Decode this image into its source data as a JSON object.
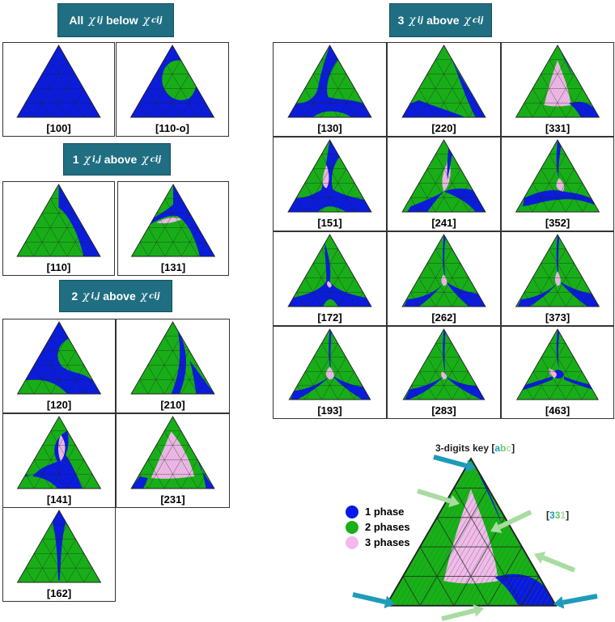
{
  "colors": {
    "one_phase": "#0b17e6",
    "two_phase": "#19b019",
    "three_phase": "#f5b8ee",
    "header_bg": "#1f6e82",
    "arrow_blue": "#1e9bb9",
    "arrow_green": "#a8dca0"
  },
  "headers": {
    "g0": {
      "pre": "All",
      "chi": "χ",
      "sub1": "ij",
      "mid": "below",
      "chi2": "χ",
      "sup2": "c",
      "sub2": "ij"
    },
    "g1": {
      "pre": "1",
      "chi": "χ",
      "sub1": "i,j",
      "mid": "above",
      "chi2": "χ",
      "sup2": "c",
      "sub2": "ij"
    },
    "g2": {
      "pre": "2",
      "chi": "χ",
      "sub1": "i,j",
      "mid": "above",
      "chi2": "χ",
      "sup2": "c",
      "sub2": "ij"
    },
    "g3": {
      "pre": "3",
      "chi": "χ",
      "sub1": "ij",
      "mid": "above",
      "chi2": "χ",
      "sup2": "c",
      "sub2": "ij"
    }
  },
  "cells": {
    "c100": "[100]",
    "c110o": "[110-o]",
    "c110": "[110]",
    "c131": "[131]",
    "c120": "[120]",
    "c210": "[210]",
    "c141": "[141]",
    "c231": "[231]",
    "c162": "[162]",
    "c130": "[130]",
    "c220": "[220]",
    "c331": "[331]",
    "c151": "[151]",
    "c241": "[241]",
    "c352": "[352]",
    "c172": "[172]",
    "c262": "[262]",
    "c373": "[373]",
    "c193": "[193]",
    "c283": "[283]",
    "c463": "[463]"
  },
  "legend": {
    "one": "1 phase",
    "two": "2 phases",
    "three": "3 phases"
  },
  "key": {
    "title": "3-digits key [",
    "a": "a",
    "b": "b",
    "c": "c",
    "close": "]",
    "example_open": "[",
    "d1": "3",
    "d2": "3",
    "d3": "1",
    "example_close": "]"
  }
}
